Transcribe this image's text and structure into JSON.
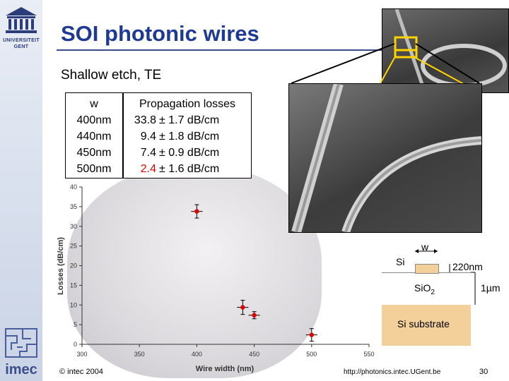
{
  "slide": {
    "title": "SOI photonic wires",
    "subtitle": "Shallow etch, TE",
    "footer_left": "© intec 2004",
    "footer_url": "http://photonics.intec.UGent.be",
    "page_number": "30"
  },
  "logos": {
    "ugent_line1": "UNIVERSITEIT",
    "ugent_line2": "GENT",
    "imec": "imec"
  },
  "table": {
    "header_w": "w",
    "header_losses": "Propagation losses",
    "rows": [
      {
        "w": "400nm",
        "value": "33.8",
        "error": "± 1.7 dB/cm"
      },
      {
        "w": "440nm",
        "value": "9.4",
        "error": "± 1.8 dB/cm"
      },
      {
        "w": "450nm",
        "value": "7.4",
        "error": "± 0.9 dB/cm"
      },
      {
        "w": "500nm",
        "value": "2.4",
        "error": "± 1.6 dB/cm"
      }
    ]
  },
  "diagram": {
    "label_w": "w",
    "label_si": "Si",
    "label_thickness": "220nm",
    "label_sio2": "Si",
    "label_sio2_sub": "O",
    "label_sio2_2": "2",
    "label_oxide_thickness": "1µm",
    "label_substrate": "Si substrate"
  },
  "chart_data": {
    "type": "scatter",
    "xlabel": "Wire width (nm)",
    "ylabel": "Losses (dB/cm)",
    "xlim": [
      300,
      550
    ],
    "ylim": [
      0,
      40
    ],
    "x_ticks": [
      300,
      350,
      400,
      450,
      500,
      550
    ],
    "y_ticks": [
      0,
      5,
      10,
      15,
      20,
      25,
      30,
      35,
      40
    ],
    "points": [
      {
        "x": 400,
        "y": 33.8,
        "xerr": 5,
        "yerr": 1.7
      },
      {
        "x": 440,
        "y": 9.4,
        "xerr": 5,
        "yerr": 1.8
      },
      {
        "x": 450,
        "y": 7.4,
        "xerr": 5,
        "yerr": 0.9
      },
      {
        "x": 500,
        "y": 2.4,
        "xerr": 5,
        "yerr": 1.6
      }
    ],
    "marker_color": "#e00000",
    "error_color": "#000000"
  }
}
